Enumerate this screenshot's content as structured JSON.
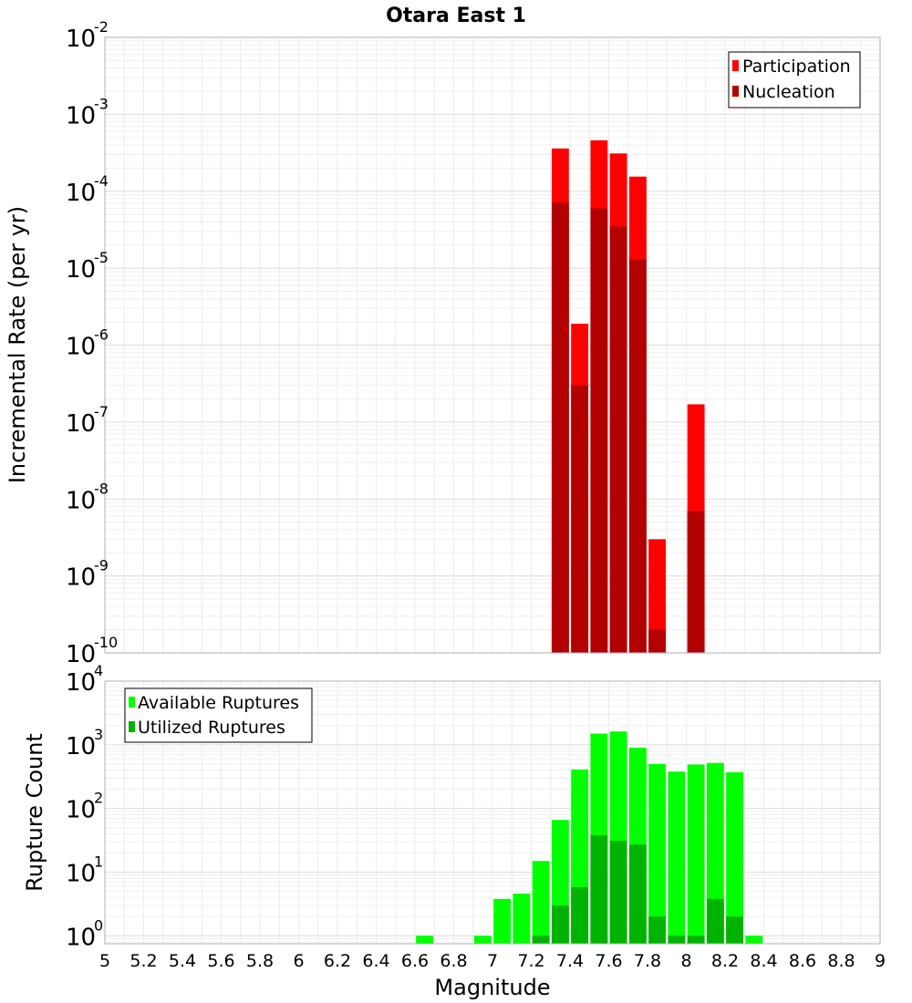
{
  "title": "Otara East 1",
  "chart_data": [
    {
      "type": "bar",
      "title": "Otara East 1",
      "xlabel": "",
      "ylabel": "Incremental Rate (per yr)",
      "y_scale": "log",
      "xlim": [
        5,
        9
      ],
      "ylim": [
        1e-10,
        0.01
      ],
      "y_ticks": [
        {
          "base": "10",
          "exp": "-2",
          "value": 0.01
        },
        {
          "base": "10",
          "exp": "-3",
          "value": 0.001
        },
        {
          "base": "10",
          "exp": "-4",
          "value": 0.0001
        },
        {
          "base": "10",
          "exp": "-5",
          "value": 1e-05
        },
        {
          "base": "10",
          "exp": "-6",
          "value": 1e-06
        },
        {
          "base": "10",
          "exp": "-7",
          "value": 1e-07
        },
        {
          "base": "10",
          "exp": "-8",
          "value": 1e-08
        },
        {
          "base": "10",
          "exp": "-9",
          "value": 1e-09
        },
        {
          "base": "10",
          "exp": "-10",
          "value": 1e-10
        }
      ],
      "grid": true,
      "legend_position": "top-right",
      "bin_width": 0.1,
      "series": [
        {
          "name": "Participation",
          "color": "#ff0000",
          "x": [
            7.35,
            7.45,
            7.55,
            7.65,
            7.75,
            7.85,
            8.05
          ],
          "values": [
            0.00036,
            1.9e-06,
            0.00046,
            0.00031,
            0.000155,
            3e-09,
            1.7e-07
          ]
        },
        {
          "name": "Nucleation",
          "color": "#b30000",
          "x": [
            7.35,
            7.45,
            7.55,
            7.65,
            7.75,
            7.85,
            8.05
          ],
          "values": [
            7.2e-05,
            3e-07,
            6e-05,
            3.5e-05,
            1.3e-05,
            2e-10,
            7e-09
          ]
        }
      ]
    },
    {
      "type": "bar",
      "title": "",
      "xlabel": "Magnitude",
      "ylabel": "Rupture Count",
      "y_scale": "log",
      "xlim": [
        5,
        9
      ],
      "ylim": [
        0.75,
        10000
      ],
      "x_ticks": [
        "5",
        "5.2",
        "5.4",
        "5.6",
        "5.8",
        "6",
        "6.2",
        "6.4",
        "6.6",
        "6.8",
        "7",
        "7.2",
        "7.4",
        "7.6",
        "7.8",
        "8",
        "8.2",
        "8.4",
        "8.6",
        "8.8",
        "9"
      ],
      "y_ticks": [
        {
          "base": "10",
          "exp": "4",
          "value": 10000
        },
        {
          "base": "10",
          "exp": "3",
          "value": 1000
        },
        {
          "base": "10",
          "exp": "2",
          "value": 100
        },
        {
          "base": "10",
          "exp": "1",
          "value": 10
        },
        {
          "base": "10",
          "exp": "0",
          "value": 1
        }
      ],
      "grid": true,
      "legend_position": "top-left",
      "bin_width": 0.1,
      "series": [
        {
          "name": "Available Ruptures",
          "color": "#00ff00",
          "x": [
            6.65,
            6.95,
            7.05,
            7.15,
            7.25,
            7.35,
            7.45,
            7.55,
            7.65,
            7.75,
            7.85,
            7.95,
            8.05,
            8.15,
            8.25,
            8.35
          ],
          "values": [
            1,
            1,
            3.8,
            4.6,
            15,
            66,
            410,
            1500,
            1620,
            900,
            500,
            380,
            490,
            520,
            370,
            1
          ]
        },
        {
          "name": "Utilized Ruptures",
          "color": "#00b300",
          "x": [
            7.25,
            7.35,
            7.45,
            7.55,
            7.65,
            7.75,
            7.85,
            7.95,
            8.05,
            8.15,
            8.25
          ],
          "values": [
            1,
            3,
            5.8,
            38,
            31,
            27,
            2,
            1,
            1,
            3.8,
            2
          ]
        }
      ]
    }
  ]
}
